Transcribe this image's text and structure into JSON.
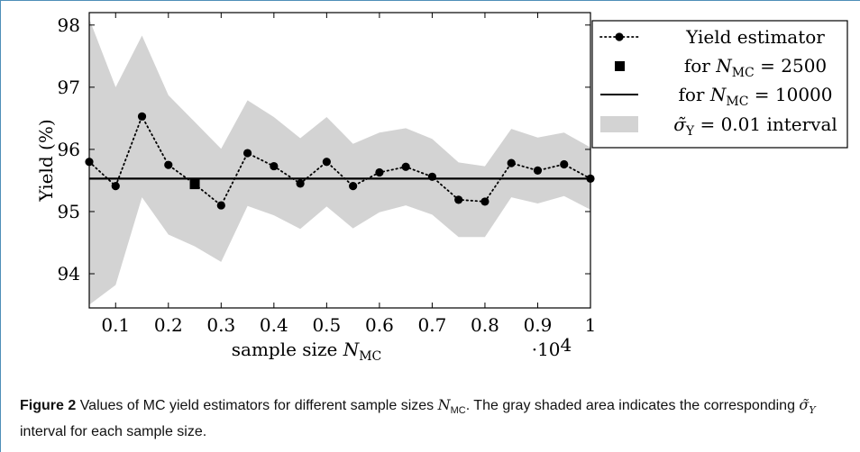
{
  "chart_data": {
    "type": "line",
    "xlabel": "sample size N_MC",
    "x_multiplier": "·10^4",
    "ylabel": "Yield (%)",
    "xlim": [
      0.05,
      1.0
    ],
    "ylim": [
      93.45,
      98.2
    ],
    "x_ticks": [
      0.1,
      0.2,
      0.3,
      0.4,
      0.5,
      0.6,
      0.7,
      0.8,
      0.9,
      1
    ],
    "x_tick_labels": [
      "0.1",
      "0.2",
      "0.3",
      "0.4",
      "0.5",
      "0.6",
      "0.7",
      "0.8",
      "0.9",
      "1"
    ],
    "y_ticks": [
      94,
      95,
      96,
      97,
      98
    ],
    "y_tick_labels": [
      "94",
      "95",
      "96",
      "97",
      "98"
    ],
    "grid": false,
    "legend_position": "outside-right-top",
    "series": [
      {
        "name": "Yield estimator",
        "style": "dotted-line-circle-markers",
        "color": "#000000",
        "x": [
          0.05,
          0.1,
          0.15,
          0.2,
          0.25,
          0.3,
          0.35,
          0.4,
          0.45,
          0.5,
          0.55,
          0.6,
          0.65,
          0.7,
          0.75,
          0.8,
          0.85,
          0.9,
          0.95,
          1.0
        ],
        "y": [
          95.8,
          95.41,
          96.53,
          95.75,
          95.44,
          95.1,
          95.94,
          95.73,
          95.45,
          95.8,
          95.41,
          95.63,
          95.72,
          95.56,
          95.19,
          95.16,
          95.78,
          95.66,
          95.76,
          95.53
        ]
      },
      {
        "name": "for N_MC = 2500",
        "style": "square-marker",
        "color": "#000000",
        "x": [
          0.25
        ],
        "y": [
          95.44
        ]
      },
      {
        "name": "for N_MC = 10000",
        "style": "solid-horizontal-line",
        "color": "#000000",
        "y": 95.53
      },
      {
        "name": "σ̃_Y = 0.01 interval",
        "style": "shaded-band",
        "color": "#d3d3d3",
        "x": [
          0.05,
          0.1,
          0.15,
          0.2,
          0.25,
          0.3,
          0.35,
          0.4,
          0.45,
          0.5,
          0.55,
          0.6,
          0.65,
          0.7,
          0.75,
          0.8,
          0.85,
          0.9,
          0.95,
          1.0
        ],
        "upper": [
          98.1,
          97.0,
          97.83,
          96.87,
          96.44,
          96.01,
          96.79,
          96.52,
          96.18,
          96.52,
          96.09,
          96.27,
          96.34,
          96.17,
          95.79,
          95.73,
          96.33,
          96.19,
          96.27,
          96.03
        ],
        "lower": [
          93.5,
          93.82,
          95.23,
          94.63,
          94.44,
          94.19,
          95.09,
          94.94,
          94.72,
          95.08,
          94.73,
          94.99,
          95.1,
          94.95,
          94.59,
          94.59,
          95.23,
          95.13,
          95.25,
          95.03
        ]
      }
    ],
    "legend": {
      "entries": [
        {
          "text": "Yield estimator",
          "symbol": "dotted-circle"
        },
        {
          "pre": "for ",
          "var": "N",
          "sub": "MC",
          "post": " = 2500",
          "symbol": "square"
        },
        {
          "pre": "for ",
          "var": "N",
          "sub": "MC",
          "post": " = 10000",
          "symbol": "solid-line"
        },
        {
          "var": "σ̃",
          "sub": "Y",
          "post": " = 0.01 interval",
          "symbol": "gray-box"
        }
      ]
    }
  },
  "caption": {
    "label": "Figure 2",
    "text_a": "Values of MC yield estimators for different sample sizes ",
    "text_a_var": "N",
    "text_a_sub": "MC",
    "text_b": ". The gray shaded area indicates the corresponding ",
    "text_b_var": "σ̃",
    "text_b_sub": "Y",
    "text_c": " interval for each sample size."
  }
}
